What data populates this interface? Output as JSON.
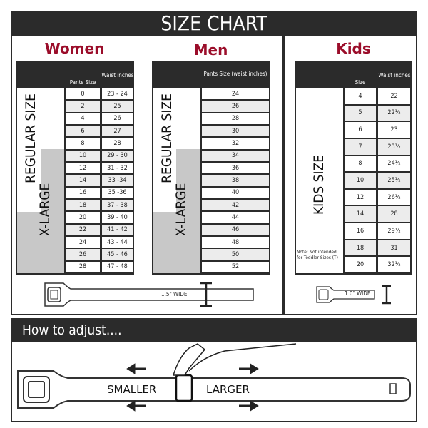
{
  "title": "SIZE CHART",
  "women": {
    "heading": "Women",
    "col1": "Pants Size",
    "col2": "Waist inches",
    "regular_label": "REGULAR SIZE",
    "xlarge_label": "X-LARGE",
    "rows": [
      [
        "0",
        "23 - 24"
      ],
      [
        "2",
        "25"
      ],
      [
        "4",
        "26"
      ],
      [
        "6",
        "27"
      ],
      [
        "8",
        "28"
      ],
      [
        "10",
        "29 - 30"
      ],
      [
        "12",
        "31 - 32"
      ],
      [
        "14",
        "33 -34"
      ],
      [
        "16",
        "35 -36"
      ],
      [
        "18",
        "37 - 38"
      ],
      [
        "20",
        "39 - 40"
      ],
      [
        "22",
        "41 - 42"
      ],
      [
        "24",
        "43 - 44"
      ],
      [
        "26",
        "45 - 46"
      ],
      [
        "28",
        "47 - 48"
      ]
    ],
    "belt_width": "1.5\" WIDE"
  },
  "men": {
    "heading": "Men",
    "col1": "Pants Size (waist inches)",
    "regular_label": "REGULAR SIZE",
    "xlarge_label": "X-LARGE",
    "rows": [
      "24",
      "26",
      "28",
      "30",
      "32",
      "34",
      "36",
      "38",
      "40",
      "42",
      "44",
      "46",
      "48",
      "50",
      "52"
    ]
  },
  "kids": {
    "heading": "Kids",
    "col1": "Size",
    "col2": "Waist inches",
    "label": "KIDS SIZE",
    "note": "Note: Not intended for Toddler Sizes (T)",
    "rows": [
      [
        "4",
        "22"
      ],
      [
        "5",
        "22½"
      ],
      [
        "6",
        "23"
      ],
      [
        "7",
        "23½"
      ],
      [
        "8",
        "24½"
      ],
      [
        "10",
        "25½"
      ],
      [
        "12",
        "26½"
      ],
      [
        "14",
        "28"
      ],
      [
        "16",
        "29½"
      ],
      [
        "18",
        "31"
      ],
      [
        "20",
        "32½"
      ]
    ],
    "belt_width": "1.0\" WIDE"
  },
  "adjust": {
    "heading": "How to adjust....",
    "smaller": "SMALLER",
    "larger": "LARGER"
  },
  "colors": {
    "dark": "#2b2b2b",
    "accent": "#9b0d2a",
    "xlarge_gray": "#c8c8c8"
  }
}
